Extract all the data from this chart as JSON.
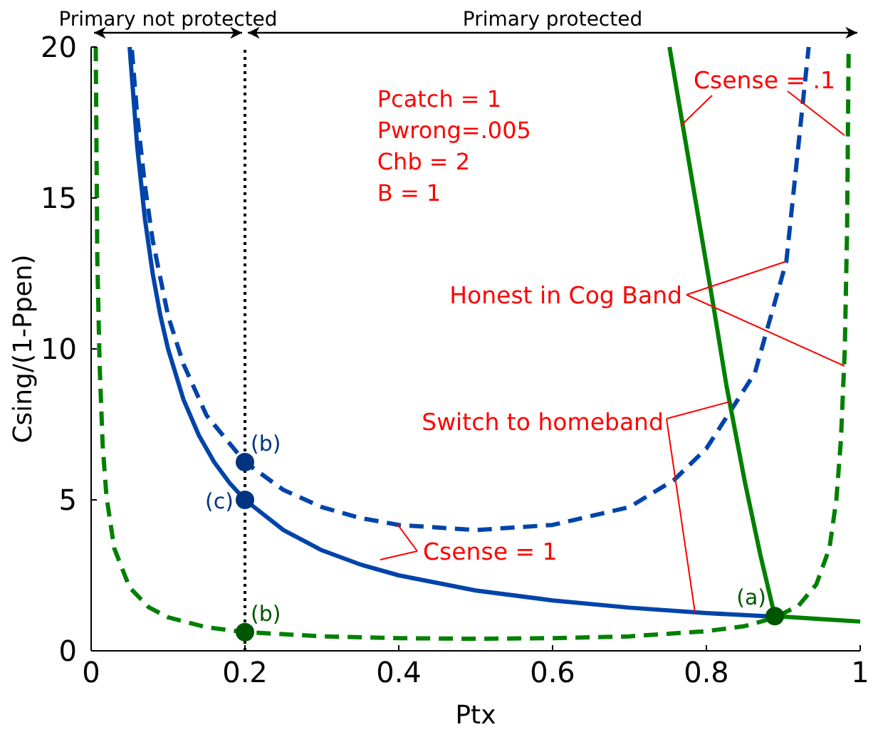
{
  "chart_data": {
    "type": "line",
    "xlabel": "Ptx",
    "ylabel": "Csing/(1-Ppen)",
    "xlim": [
      0,
      1
    ],
    "ylim": [
      0,
      20
    ],
    "xticks": [
      0,
      0.2,
      0.4,
      0.6,
      0.8,
      1
    ],
    "yticks": [
      0,
      5,
      10,
      15,
      20
    ],
    "grid": false,
    "series": [
      {
        "color": "#0044aa",
        "line_style": "solid",
        "x": [
          0.05,
          0.06,
          0.07,
          0.08,
          0.09,
          0.1,
          0.12,
          0.14,
          0.16,
          0.18,
          0.2,
          0.25,
          0.3,
          0.35,
          0.4,
          0.5,
          0.6,
          0.7,
          0.8,
          0.889
        ],
        "values": [
          20,
          16.67,
          14.29,
          12.5,
          11.11,
          10,
          8.33,
          7.14,
          6.25,
          5.56,
          5,
          4,
          3.33,
          2.86,
          2.5,
          2,
          1.67,
          1.43,
          1.25,
          1.13
        ]
      },
      {
        "color": "#0044aa",
        "line_style": "dashed",
        "x": [
          0.053,
          0.06,
          0.07,
          0.08,
          0.1,
          0.12,
          0.15,
          0.2,
          0.25,
          0.3,
          0.35,
          0.4,
          0.5,
          0.6,
          0.7,
          0.758,
          0.8,
          0.863,
          0.904,
          0.933
        ],
        "values": [
          19.9,
          17.7,
          15.4,
          13.6,
          11.1,
          9.5,
          7.8,
          6.25,
          5.33,
          4.76,
          4.4,
          4.17,
          4,
          4.17,
          4.76,
          5.66,
          6.7,
          9.2,
          12.9,
          20
        ]
      },
      {
        "color": "#008000",
        "line_style": "dashed",
        "x": [
          0.006,
          0.008,
          0.011,
          0.015,
          0.02,
          0.03,
          0.05,
          0.075,
          0.1,
          0.15,
          0.2,
          0.3,
          0.4,
          0.5,
          0.6,
          0.7,
          0.8,
          0.85,
          0.889,
          0.92,
          0.943,
          0.96,
          0.969,
          0.975,
          0.98,
          0.983,
          0.985
        ],
        "values": [
          20,
          13,
          9.5,
          6.8,
          5.1,
          3.4,
          2.1,
          1.44,
          1.11,
          0.78,
          0.62,
          0.48,
          0.42,
          0.4,
          0.42,
          0.48,
          0.65,
          0.82,
          1.1,
          1.5,
          2.2,
          3.4,
          5,
          7,
          10,
          14,
          20
        ]
      },
      {
        "color": "#008000",
        "line_style": "solid",
        "x": [
          0.752,
          0.77,
          0.79,
          0.81,
          0.826,
          0.85,
          0.87,
          0.889,
          0.95,
          1.0
        ],
        "values": [
          20,
          17.3,
          14.3,
          11.3,
          8.8,
          5.6,
          3.2,
          1.15,
          1.05,
          0.97
        ]
      },
      {
        "type": "scatter",
        "marker": "circle",
        "x": [
          0.2,
          0.2,
          0.2,
          0.889
        ],
        "values": [
          6.25,
          5,
          0.62,
          1.15
        ],
        "colors": [
          "#003380",
          "#003380",
          "#005500",
          "#005500"
        ]
      }
    ],
    "ref_lines": [
      {
        "axis": "x",
        "value": 0.2,
        "color": "#000000",
        "line_style": "dotted"
      }
    ],
    "annotations": [
      "Primary not protected",
      "Primary protected",
      "Pcatch = 1",
      "Pwrong=.005",
      "Chb = 2",
      "B = 1",
      {
        "text": "Csense = .1",
        "x": 0.767,
        "y": 17.4
      },
      {
        "text": "Honest in Cog Band",
        "x": 0.904,
        "y": 12.9
      },
      {
        "text": "Switch to homeband",
        "x": 0.83,
        "y": 8.25
      },
      {
        "text": "Csense = 1",
        "x": 0.398,
        "y": 4.2
      },
      {
        "text": "(b)",
        "x": 0.2,
        "y": 6.25
      },
      {
        "text": "(c)",
        "x": 0.2,
        "y": 5
      },
      {
        "text": "(b)",
        "x": 0.2,
        "y": 0.62
      },
      {
        "text": "(a)",
        "x": 0.889,
        "y": 1.15
      }
    ]
  }
}
